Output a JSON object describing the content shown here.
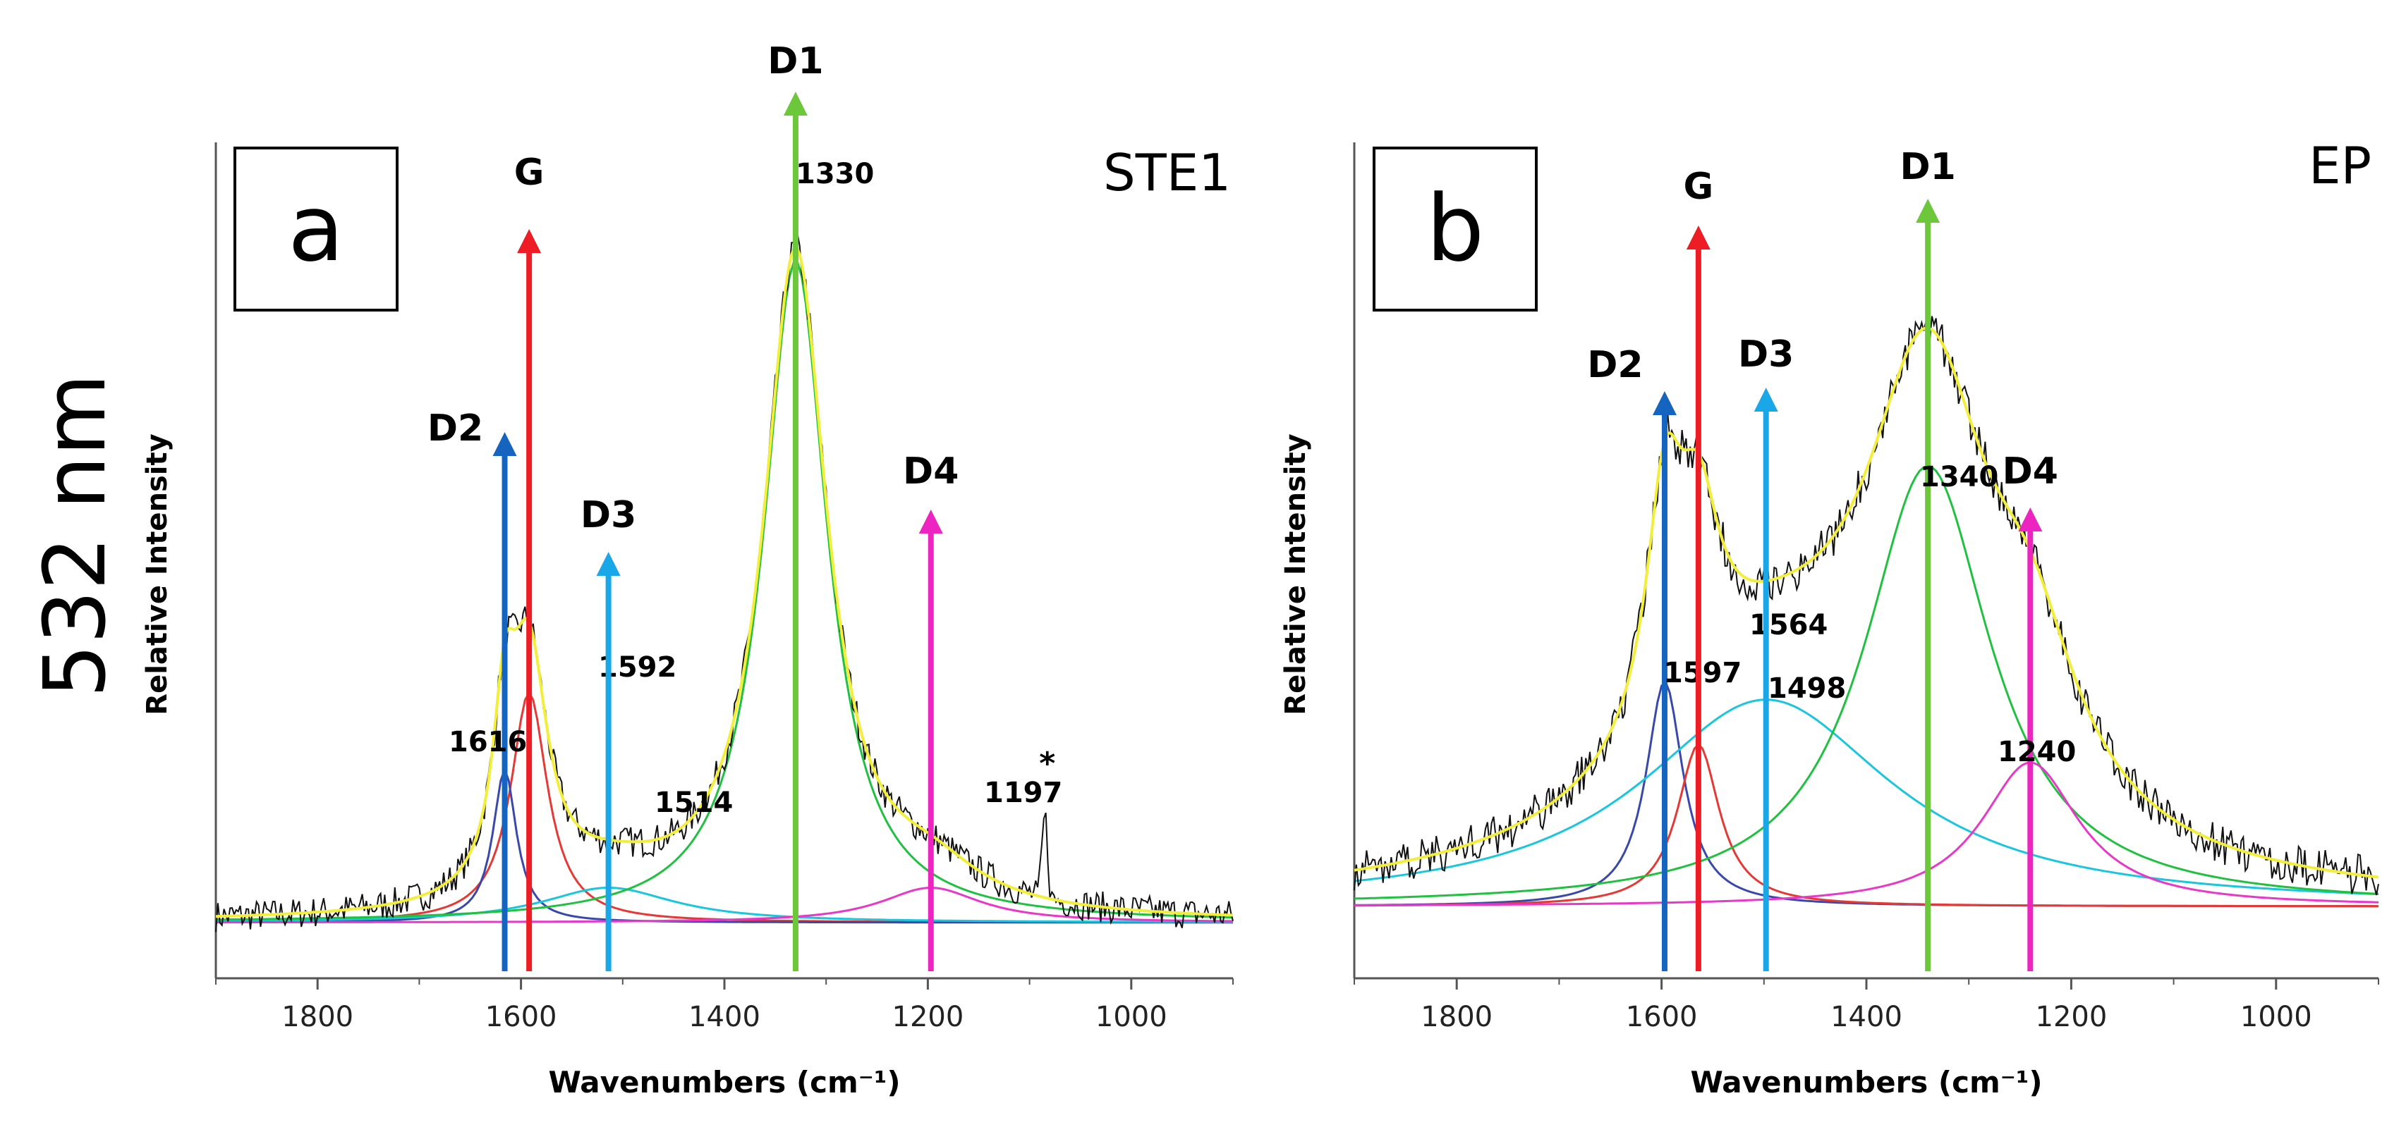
{
  "figure_label": "532 nm",
  "chart_data": [
    {
      "type": "line",
      "panel_label": "a",
      "sample": "STE1",
      "xlabel": "Wavenumbers (cm⁻¹)",
      "ylabel": "Relative Intensity",
      "xlim": [
        1900,
        900
      ],
      "ylim": [
        -0.08,
        1.12
      ],
      "x_ticks": [
        1800,
        1600,
        1400,
        1200,
        1000
      ],
      "baseline": 0.0,
      "bands": [
        {
          "name": "G",
          "color": "#ee1c24",
          "position": 1592,
          "peak_label": "1592",
          "height": 0.33,
          "hwhm": 22
        },
        {
          "name": "D2",
          "color": "#1565c0",
          "position": 1616,
          "peak_label": "1616",
          "height": 0.22,
          "hwhm": 14
        },
        {
          "name": "D3",
          "color": "#1aa7e8",
          "position": 1514,
          "peak_label": "1514",
          "height": 0.05,
          "hwhm": 80
        },
        {
          "name": "D1",
          "color": "#6cc83a",
          "position": 1330,
          "peak_label": "1330",
          "height": 0.95,
          "hwhm": 38
        },
        {
          "name": "D4",
          "color": "#ec24c0",
          "position": 1197,
          "peak_label": "1197",
          "height": 0.05,
          "hwhm": 60
        }
      ],
      "annotations": [
        {
          "text": "*",
          "x": 1085
        }
      ]
    },
    {
      "type": "line",
      "panel_label": "b",
      "sample": "EP",
      "xlabel": "Wavenumbers (cm⁻¹)",
      "ylabel": "Relative Intensity",
      "xlim": [
        1900,
        900
      ],
      "ylim": [
        -0.08,
        0.85
      ],
      "x_ticks": [
        1800,
        1600,
        1400,
        1200,
        1000
      ],
      "baseline": 0.0,
      "bands": [
        {
          "name": "D2",
          "color": "#1565c0",
          "position": 1597,
          "peak_label": "1597",
          "height": 0.25,
          "hwhm": 22
        },
        {
          "name": "G",
          "color": "#ee1c24",
          "position": 1564,
          "peak_label": "1564",
          "height": 0.18,
          "hwhm": 25
        },
        {
          "name": "D3",
          "color": "#1aa7e8",
          "position": 1498,
          "peak_label": "1498",
          "height": 0.23,
          "hwhm": 150
        },
        {
          "name": "D1",
          "color": "#6cc83a",
          "position": 1340,
          "peak_label": "1340",
          "height": 0.49,
          "hwhm": 75
        },
        {
          "name": "D4",
          "color": "#ec24c0",
          "position": 1240,
          "peak_label": "1240",
          "height": 0.16,
          "hwhm": 58
        }
      ]
    }
  ]
}
